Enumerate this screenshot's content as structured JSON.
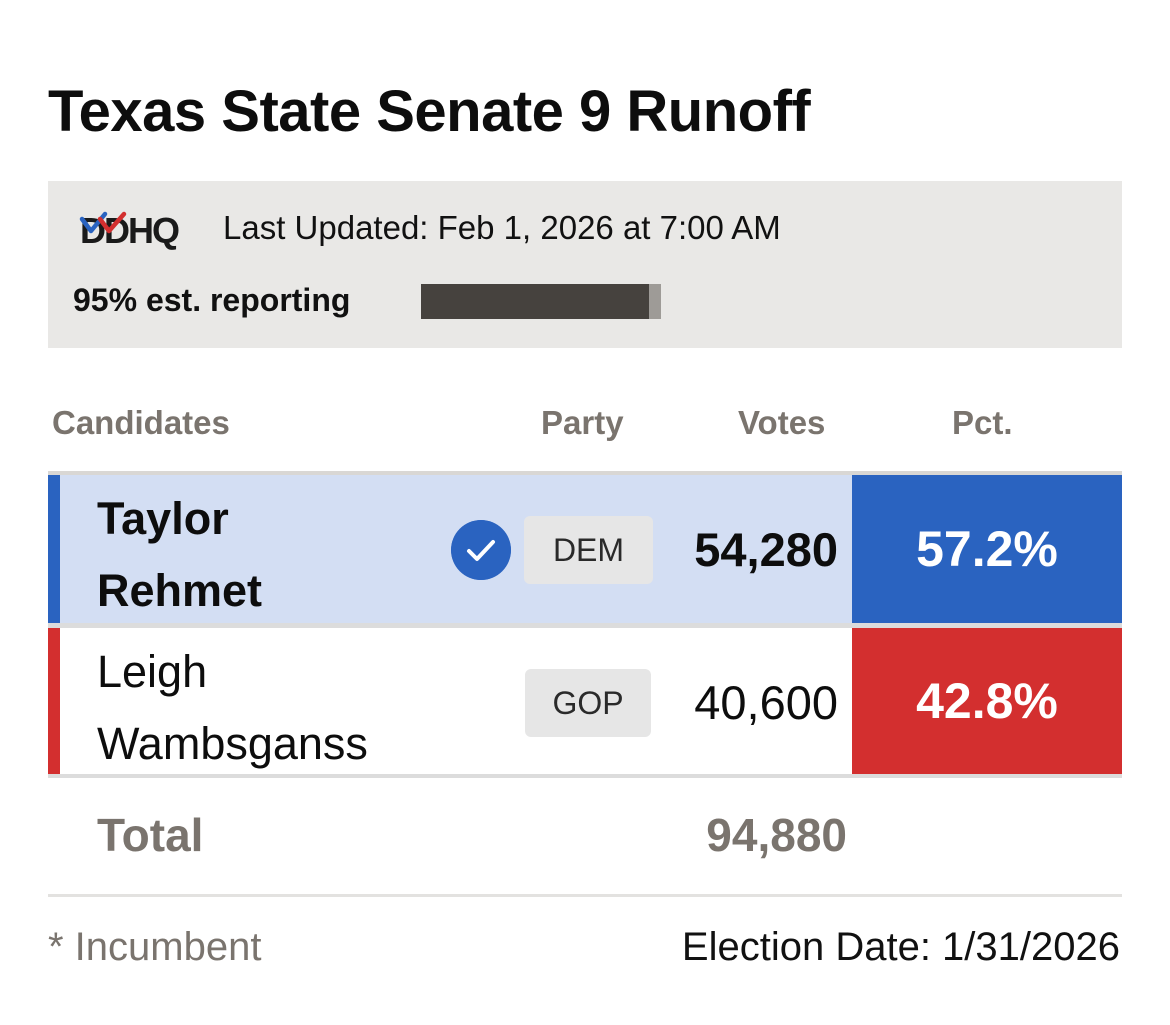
{
  "header": {
    "title": "Texas State Senate 9 Runoff"
  },
  "status": {
    "logo_text": "DDHQ",
    "last_updated": "Last Updated: Feb 1, 2026 at 7:00 AM",
    "reporting_label": "95% est. reporting",
    "reporting_fraction": 0.95
  },
  "table": {
    "headers": {
      "candidates": "Candidates",
      "party": "Party",
      "votes": "Votes",
      "pct": "Pct."
    },
    "rows": [
      {
        "first_name": "Taylor",
        "last_name": "Rehmet",
        "party": "DEM",
        "votes": "54,280",
        "pct": "57.2%",
        "winner": true,
        "party_color": "#2a63c0"
      },
      {
        "first_name": "Leigh",
        "last_name": "Wambsganss",
        "party": "GOP",
        "votes": "40,600",
        "pct": "42.8%",
        "winner": false,
        "party_color": "#d32f2f"
      }
    ],
    "total_label": "Total",
    "total_votes": "94,880"
  },
  "footer": {
    "incumbent_note": "* Incumbent",
    "election_date": "Election Date: 1/31/2026"
  },
  "colors": {
    "dem_blue": "#2a63c0",
    "gop_red": "#d32f2f",
    "winner_row_bg": "#d3def3",
    "status_bg": "#e9e8e6",
    "muted_text": "#7a746e",
    "progress_fill": "#46423e",
    "progress_track": "#9e9b97"
  },
  "icons": {
    "winner": "check-circle-icon"
  }
}
